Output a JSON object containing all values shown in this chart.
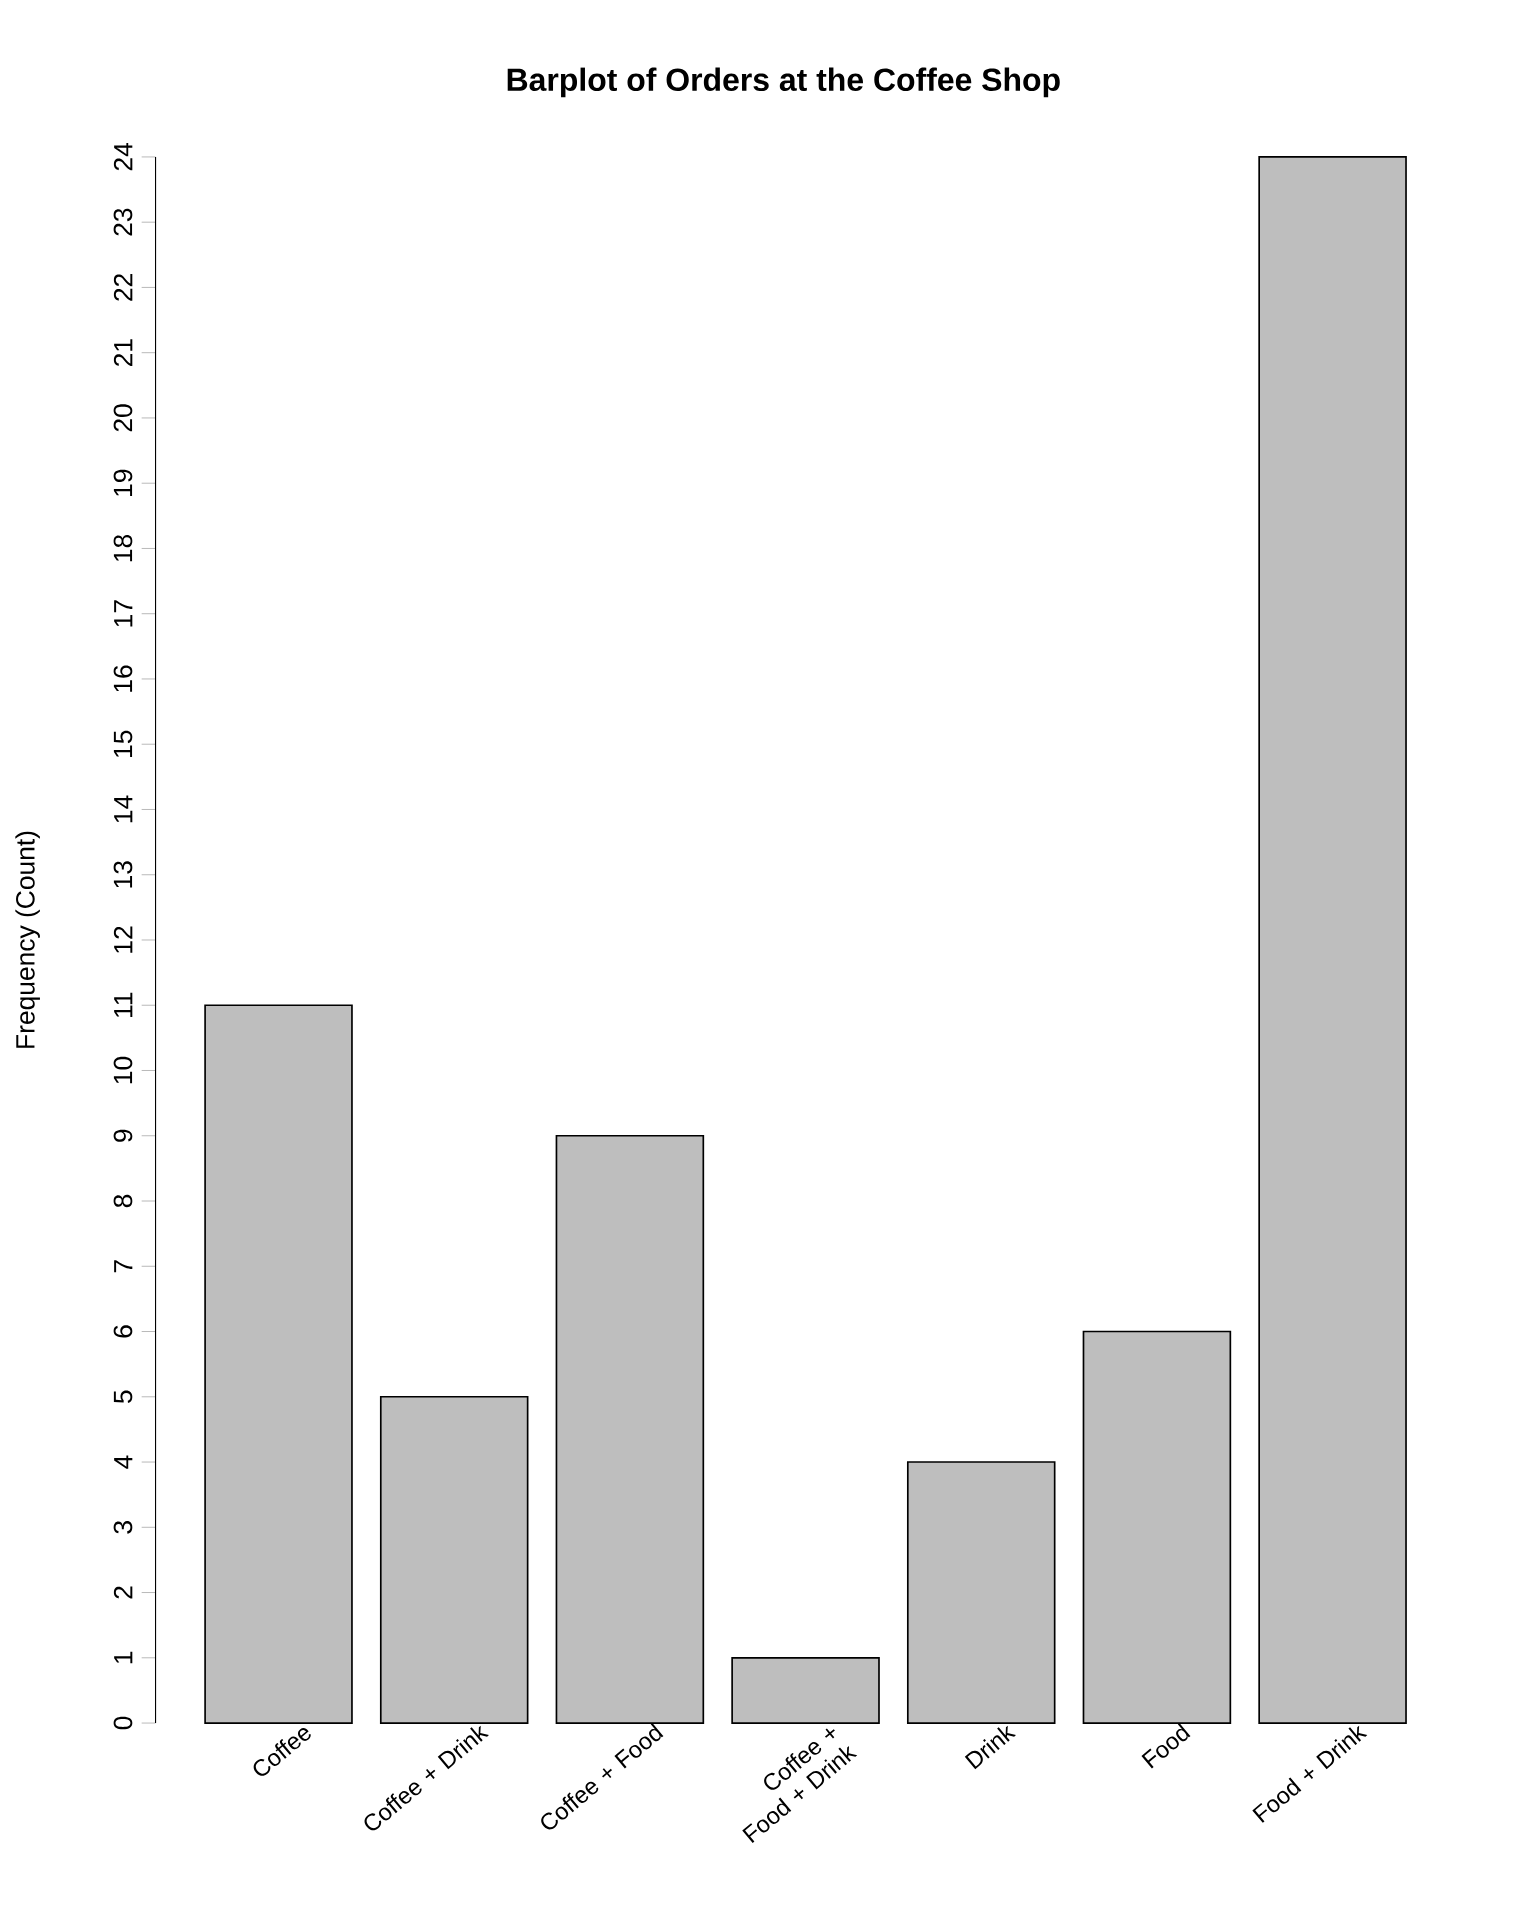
{
  "chart_data": {
    "type": "bar",
    "title": "Barplot of Orders at the Coffee Shop",
    "ylabel": "Frequency (Count)",
    "categories": [
      "Coffee",
      "Coffee + Drink",
      "Coffee + Food",
      "Coffee + Food + Drink",
      "Drink",
      "Food",
      "Food + Drink"
    ],
    "values": [
      11,
      5,
      9,
      1,
      4,
      6,
      24
    ],
    "color": "#bebebe",
    "ylim": [
      0,
      24
    ],
    "yticks": [
      0,
      1,
      2,
      3,
      4,
      5,
      6,
      7,
      8,
      9,
      10,
      11,
      12,
      13,
      14,
      15,
      16,
      17,
      18,
      19,
      20,
      21,
      22,
      23,
      24
    ],
    "grid": false
  }
}
